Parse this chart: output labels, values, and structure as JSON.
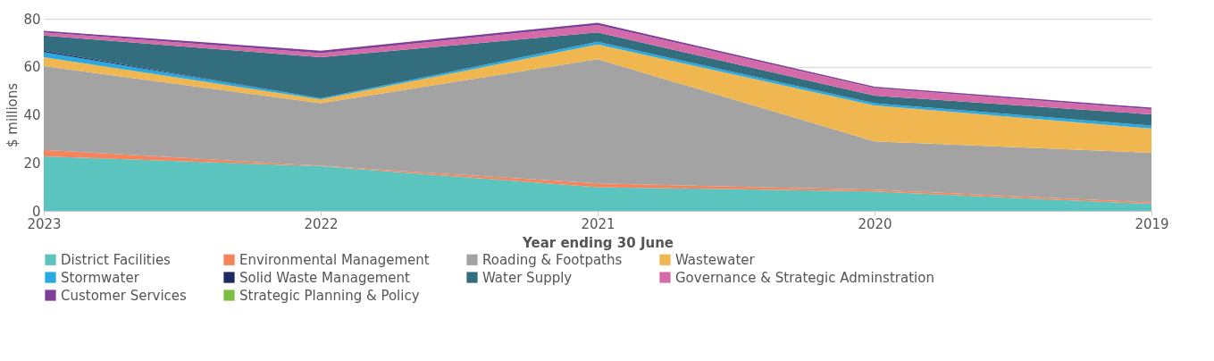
{
  "chart_data": {
    "type": "area",
    "stacked": true,
    "xlabel": "Year ending 30 June",
    "ylabel": "$ millions",
    "categories": [
      "2023",
      "2022",
      "2021",
      "2020",
      "2019"
    ],
    "ylim": [
      0,
      80
    ],
    "yticks": [
      0,
      20,
      40,
      60,
      80
    ],
    "grid": "y",
    "legend": "bottom",
    "series": [
      {
        "name": "District Facilities",
        "color": "#5bc4bf",
        "values": [
          22.7,
          18.6,
          9.9,
          8.1,
          2.9
        ]
      },
      {
        "name": "Environmental Management",
        "color": "#f5845c",
        "values": [
          2.7,
          0.2,
          1.5,
          0.7,
          0.6
        ]
      },
      {
        "name": "Roading & Footpaths",
        "color": "#a3a3a3",
        "values": [
          34.9,
          26.0,
          51.8,
          20.1,
          20.7
        ]
      },
      {
        "name": "Wastewater",
        "color": "#f0b64f",
        "values": [
          3.7,
          1.6,
          6.1,
          15.0,
          10.1
        ]
      },
      {
        "name": "Stormwater",
        "color": "#29a9e0",
        "values": [
          2.1,
          0.5,
          1.1,
          0.9,
          1.2
        ]
      },
      {
        "name": "Solid Waste Management",
        "color": "#1e2a5e",
        "values": [
          0.6,
          0,
          0,
          0,
          0
        ]
      },
      {
        "name": "Water Supply",
        "color": "#336e7f",
        "values": [
          6.3,
          17.1,
          3.9,
          3.2,
          4.7
        ]
      },
      {
        "name": "Governance & Strategic Adminstration",
        "color": "#d46ba8",
        "values": [
          1.3,
          1.7,
          3.1,
          3.2,
          2.1
        ]
      },
      {
        "name": "Customer Services",
        "color": "#7d3f98",
        "values": [
          0.7,
          1.0,
          0.9,
          0.5,
          0.7
        ]
      },
      {
        "name": "Strategic Planning & Policy",
        "color": "#7cbf44",
        "values": [
          null,
          null,
          null,
          null,
          null
        ]
      }
    ]
  }
}
